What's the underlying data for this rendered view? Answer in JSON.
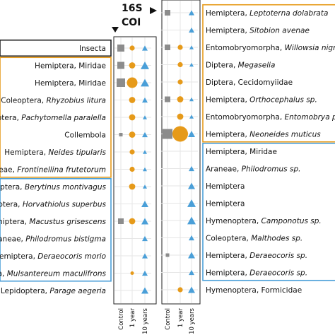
{
  "chart_data": {
    "type": "scatter",
    "marker_legend": [
      {
        "marker": "square",
        "color": "#8c8c8c"
      },
      {
        "marker": "circle",
        "color": "#e69a1a"
      },
      {
        "marker": "triangle",
        "color": "#4a9fd8"
      }
    ],
    "colors": {
      "control": "#8c8c8c",
      "one_year": "#e69a1a",
      "ten_years": "#4a9fd8",
      "group_orange": "#e69a1a",
      "group_blue": "#4a9fd8",
      "group_black": "#222222"
    },
    "x_categories": [
      "Control",
      "1 year",
      "10 years"
    ],
    "headers": {
      "left": "COI",
      "right": "16S"
    },
    "panels": [
      {
        "id": "left",
        "groups": [
          {
            "color": "black",
            "rows": [
              0,
              0
            ]
          },
          {
            "color": "orange",
            "rows": [
              1,
              7
            ]
          },
          {
            "color": "blue",
            "rows": [
              8,
              13
            ]
          }
        ],
        "taxa": [
          {
            "order": "",
            "taxon": "Insecta",
            "italic": false,
            "values": [
              3,
              2,
              2
            ]
          },
          {
            "order": "Hemiptera, ",
            "taxon": "Miridae",
            "italic": false,
            "values": [
              3,
              3,
              4
            ]
          },
          {
            "order": "Hemiptera, ",
            "taxon": "Miridae",
            "italic": false,
            "values": [
              4,
              5,
              4
            ]
          },
          {
            "order": "Coleoptera, ",
            "taxon": "Rhyzobius litura",
            "italic": true,
            "values": [
              0,
              3,
              2
            ]
          },
          {
            "order": "ptera, ",
            "taxon": "Pachytomella paralella",
            "italic": true,
            "values": [
              0,
              3,
              1
            ]
          },
          {
            "order": "",
            "taxon": "Collembola",
            "italic": false,
            "values": [
              1,
              3,
              2
            ]
          },
          {
            "order": "Hemiptera, ",
            "taxon": "Neides tipularis",
            "italic": true,
            "values": [
              0,
              2,
              1
            ]
          },
          {
            "order": "aneae, ",
            "taxon": "Frontinellina frutetorum",
            "italic": true,
            "values": [
              0,
              2,
              1
            ]
          },
          {
            "order": "aiptera, ",
            "taxon": "Berytinus montivagus",
            "italic": true,
            "values": [
              0,
              3,
              1
            ]
          },
          {
            "order": "ptera, ",
            "taxon": "Horvathiolus superbus",
            "italic": true,
            "values": [
              0,
              0,
              3
            ]
          },
          {
            "order": "emiptera, ",
            "taxon": "Macustus grisescens",
            "italic": true,
            "values": [
              2,
              3,
              3
            ]
          },
          {
            "order": "Araneae, ",
            "taxon": "Philodromus bistigma",
            "italic": true,
            "values": [
              0,
              0,
              2
            ]
          },
          {
            "order": "emiptera, ",
            "taxon": "Deraeocoris morio",
            "italic": true,
            "values": [
              0,
              0,
              2
            ]
          },
          {
            "order": "tera, ",
            "taxon": "Mulsantereum maculifrons",
            "italic": true,
            "values": [
              0,
              1,
              2
            ]
          },
          {
            "order": "Lepidoptera, ",
            "taxon": "Parage aegeria",
            "italic": true,
            "values": [
              0,
              0,
              3
            ]
          }
        ]
      },
      {
        "id": "right",
        "groups": [
          {
            "color": "orange",
            "rows": [
              0,
              7
            ]
          },
          {
            "color": "blue",
            "rows": [
              8,
              15
            ]
          }
        ],
        "taxa": [
          {
            "order": "Hemiptera, ",
            "taxon": "Leptoterna dolabrata",
            "italic": true,
            "values": [
              2,
              0,
              2
            ]
          },
          {
            "order": "Hemiptera, ",
            "taxon": "Sitobion avenae",
            "italic": true,
            "values": [
              0,
              0,
              2
            ]
          },
          {
            "order": "Entomobryomorpha, ",
            "taxon": "Willowsia nigro",
            "italic": true,
            "values": [
              2,
              2,
              1
            ]
          },
          {
            "order": "Diptera, ",
            "taxon": "Megaselia",
            "italic": true,
            "values": [
              0,
              2,
              1
            ]
          },
          {
            "order": "Diptera, ",
            "taxon": "Cecidomyiidae",
            "italic": false,
            "values": [
              0,
              2,
              0
            ]
          },
          {
            "order": "Hemiptera, ",
            "taxon": "Orthocephalus sp.",
            "italic": true,
            "values": [
              2,
              3,
              1
            ]
          },
          {
            "order": "Entomobryomorpha, ",
            "taxon": "Entomobrya pr",
            "italic": true,
            "values": [
              0,
              3,
              1
            ]
          },
          {
            "order": "Hemiptera, ",
            "taxon": "Neoneides muticus",
            "italic": true,
            "values": [
              5,
              6,
              3
            ]
          },
          {
            "order": "Hemiptera, ",
            "taxon": "Miridae",
            "italic": false,
            "values": [
              0,
              0,
              0
            ]
          },
          {
            "order": "Araneae, ",
            "taxon": "Philodromus sp.",
            "italic": true,
            "values": [
              0,
              0,
              2
            ]
          },
          {
            "order": "Hemiptera",
            "taxon": "",
            "italic": false,
            "values": [
              0,
              0,
              3
            ]
          },
          {
            "order": "Hemiptera",
            "taxon": "",
            "italic": false,
            "values": [
              0,
              0,
              4
            ]
          },
          {
            "order": "Hymenoptera, ",
            "taxon": "Camponotus sp.",
            "italic": true,
            "values": [
              0,
              0,
              4
            ]
          },
          {
            "order": "Coleoptera, ",
            "taxon": "Malthodes sp.",
            "italic": true,
            "values": [
              0,
              0,
              2
            ]
          },
          {
            "order": "Hemiptera, ",
            "taxon": "Deraeocoris sp.",
            "italic": true,
            "values": [
              1,
              0,
              3
            ]
          },
          {
            "order": "Hemiptera, ",
            "taxon": "Deraeocoris sp.",
            "italic": true,
            "values": [
              0,
              0,
              2
            ]
          },
          {
            "order": "Hymenoptera, ",
            "taxon": "Formicidae",
            "italic": false,
            "values": [
              0,
              2,
              3
            ]
          }
        ]
      }
    ]
  }
}
